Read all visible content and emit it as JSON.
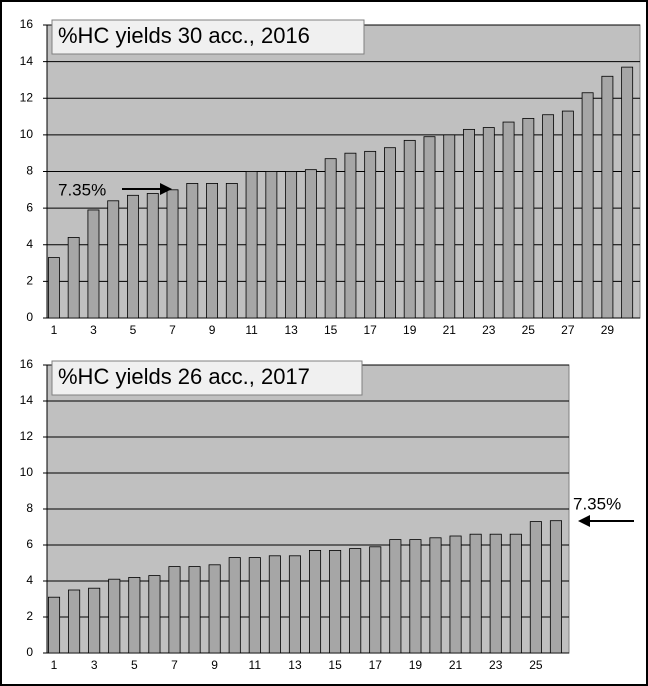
{
  "chart_data": [
    {
      "type": "bar",
      "title": "%HC yields 30 acc., 2016",
      "annotation": "7.35%",
      "categories": [
        "1",
        null,
        "3",
        null,
        "5",
        null,
        "7",
        null,
        "9",
        null,
        "11",
        null,
        "13",
        null,
        "15",
        null,
        "17",
        null,
        "19",
        null,
        "21",
        null,
        "23",
        null,
        "25",
        null,
        "27",
        null,
        "29",
        null
      ],
      "values": [
        3.3,
        4.4,
        5.9,
        6.4,
        6.7,
        6.8,
        7.0,
        7.35,
        7.35,
        7.35,
        8.0,
        8.0,
        8.0,
        8.1,
        8.7,
        9.0,
        9.1,
        9.3,
        9.7,
        9.9,
        10.0,
        10.3,
        10.4,
        10.7,
        10.9,
        11.1,
        11.3,
        12.3,
        13.2,
        13.7
      ],
      "color": "#a6a6a6",
      "ylim": [
        0,
        16
      ],
      "yticks": [
        0,
        2,
        4,
        6,
        8,
        10,
        12,
        14,
        16
      ],
      "grid": true
    },
    {
      "type": "bar",
      "title": "%HC yields 26 acc., 2017",
      "annotation": "7.35%",
      "categories": [
        "1",
        null,
        "3",
        null,
        "5",
        null,
        "7",
        null,
        "9",
        null,
        "11",
        null,
        "13",
        null,
        "15",
        null,
        "17",
        null,
        "19",
        null,
        "21",
        null,
        "23",
        null,
        "25",
        null
      ],
      "values": [
        3.1,
        3.5,
        3.6,
        4.1,
        4.2,
        4.3,
        4.8,
        4.8,
        4.9,
        5.3,
        5.3,
        5.4,
        5.4,
        5.7,
        5.7,
        5.8,
        5.9,
        6.3,
        6.3,
        6.4,
        6.5,
        6.6,
        6.6,
        6.6,
        7.3,
        7.35
      ],
      "color": "#a6a6a6",
      "ylim": [
        0,
        16
      ],
      "yticks": [
        0,
        2,
        4,
        6,
        8,
        10,
        12,
        14,
        16
      ],
      "grid": true
    }
  ]
}
